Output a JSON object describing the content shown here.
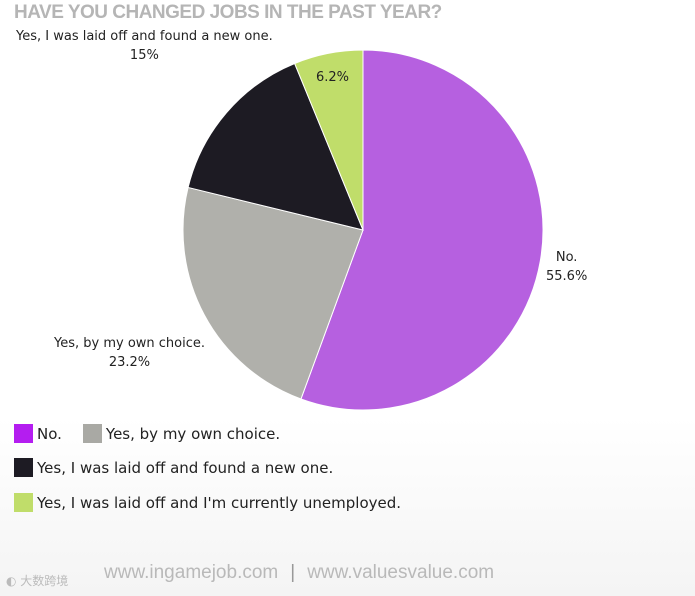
{
  "chart_data": {
    "type": "pie",
    "title": "HAVE YOU CHANGED JOBS IN THE PAST YEAR?",
    "slices": [
      {
        "label": "No.",
        "value": 55.6,
        "value_label": "55.6%",
        "color": "#b660e0",
        "legend_color": "#b41df0"
      },
      {
        "label": "Yes, by my own choice.",
        "value": 23.2,
        "value_label": "23.2%",
        "color": "#b0b0ab",
        "legend_color": "#a9a9a4"
      },
      {
        "label": "Yes, I was laid off and found a new one.",
        "value": 15,
        "value_label": "15%",
        "color": "#1d1b23",
        "legend_color": "#1d1b23"
      },
      {
        "label": "Yes, I was laid off and I'm currently unemployed.",
        "value": 6.2,
        "value_label": "6.2%",
        "color": "#c0dd6a",
        "legend_color": "#c0dd6a"
      }
    ],
    "start_angle": "12 o'clock",
    "direction": "clockwise",
    "legend_position": "bottom-left"
  },
  "footer": {
    "link1": "www.ingamejob.com",
    "separator": "|",
    "link2": "www.valuesvalue.com"
  },
  "watermark": "大数跨境"
}
